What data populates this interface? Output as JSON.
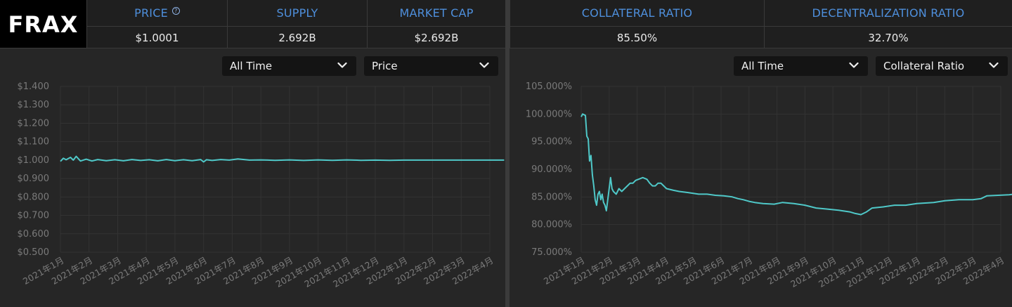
{
  "logo": "FRAX",
  "stats": [
    {
      "label": "PRICE",
      "value": "$1.0001",
      "has_info": true
    },
    {
      "label": "SUPPLY",
      "value": "2.692B"
    },
    {
      "label": "MARKET CAP",
      "value": "$2.692B"
    },
    {
      "label": "COLLATERAL RATIO",
      "value": "85.50%"
    },
    {
      "label": "DECENTRALIZATION RATIO",
      "value": "32.70%"
    }
  ],
  "info_icon_glyph": "?",
  "left_panel": {
    "range_dropdown": "All Time",
    "metric_dropdown": "Price"
  },
  "right_panel": {
    "range_dropdown": "All Time",
    "metric_dropdown": "Collateral Ratio"
  },
  "colors": {
    "line": "#4fc8c8",
    "accent": "#4e8fdc"
  },
  "chart_data": [
    {
      "type": "line",
      "title": "",
      "ylabel": "",
      "xlabel": "",
      "ylim": [
        0.5,
        1.4
      ],
      "yticks": [
        "$1.400",
        "$1.300",
        "$1.200",
        "$1.100",
        "$1.000",
        "$0.900",
        "$0.800",
        "$0.700",
        "$0.600",
        "$0.500"
      ],
      "ytick_values": [
        1.4,
        1.3,
        1.2,
        1.1,
        1.0,
        0.9,
        0.8,
        0.7,
        0.6,
        0.5
      ],
      "xticks": [
        "2021年1月",
        "2021年2月",
        "2021年3月",
        "2021年4月",
        "2021年5月",
        "2021年6月",
        "2021年7月",
        "2021年8月",
        "2021年9月",
        "2021年10月",
        "2021年11月",
        "2021年12月",
        "2022年1月",
        "2022年2月",
        "2022年3月",
        "2022年4月"
      ],
      "series": [
        {
          "values": [
            [
              0,
              0.993
            ],
            [
              0.1,
              1.01
            ],
            [
              0.2,
              1.002
            ],
            [
              0.35,
              1.015
            ],
            [
              0.45,
              1.0
            ],
            [
              0.55,
              1.02
            ],
            [
              0.7,
              0.995
            ],
            [
              0.9,
              1.005
            ],
            [
              1.1,
              0.995
            ],
            [
              1.3,
              1.003
            ],
            [
              1.6,
              0.997
            ],
            [
              1.9,
              1.002
            ],
            [
              2.2,
              0.996
            ],
            [
              2.5,
              1.003
            ],
            [
              2.8,
              0.998
            ],
            [
              3.1,
              1.002
            ],
            [
              3.4,
              0.996
            ],
            [
              3.7,
              1.003
            ],
            [
              4.0,
              0.997
            ],
            [
              4.3,
              1.002
            ],
            [
              4.6,
              0.997
            ],
            [
              4.9,
              1.003
            ],
            [
              5.0,
              0.99
            ],
            [
              5.1,
              1.002
            ],
            [
              5.3,
              0.998
            ],
            [
              5.6,
              1.003
            ],
            [
              5.9,
              1.0
            ],
            [
              6.2,
              1.006
            ],
            [
              6.6,
              1.0
            ],
            [
              7.0,
              1.001
            ],
            [
              7.5,
              0.999
            ],
            [
              8.0,
              1.001
            ],
            [
              8.5,
              0.998
            ],
            [
              9.0,
              1.001
            ],
            [
              9.5,
              0.999
            ],
            [
              10.0,
              1.001
            ],
            [
              10.5,
              0.999
            ],
            [
              11.0,
              1.0
            ],
            [
              11.5,
              0.999
            ],
            [
              12.0,
              1.0
            ],
            [
              12.5,
              1.0
            ],
            [
              13.0,
              1.0
            ],
            [
              13.5,
              1.0
            ],
            [
              14.0,
              1.0
            ],
            [
              14.5,
              1.0
            ],
            [
              15.0,
              1.0
            ],
            [
              15.5,
              1.0
            ]
          ]
        }
      ]
    },
    {
      "type": "line",
      "title": "",
      "ylabel": "",
      "xlabel": "",
      "ylim": [
        75,
        105
      ],
      "yticks": [
        "105.000%",
        "100.000%",
        "95.000%",
        "90.000%",
        "85.000%",
        "80.000%",
        "75.000%"
      ],
      "ytick_values": [
        105,
        100,
        95,
        90,
        85,
        80,
        75
      ],
      "xticks": [
        "2021年1月",
        "2021年2月",
        "2021年3月",
        "2021年4月",
        "2021年5月",
        "2021年6月",
        "2021年7月",
        "2021年8月",
        "2021年9月",
        "2021年10月",
        "2021年11月",
        "2021年12月",
        "2022年1月",
        "2022年2月",
        "2022年3月",
        "2022年4月"
      ],
      "series": [
        {
          "values": [
            [
              0,
              99.5
            ],
            [
              0.05,
              100
            ],
            [
              0.15,
              99.75
            ],
            [
              0.2,
              96
            ],
            [
              0.25,
              95.5
            ],
            [
              0.3,
              91.5
            ],
            [
              0.35,
              92.5
            ],
            [
              0.4,
              89
            ],
            [
              0.45,
              87
            ],
            [
              0.5,
              84.5
            ],
            [
              0.55,
              83.5
            ],
            [
              0.6,
              85.5
            ],
            [
              0.65,
              86
            ],
            [
              0.7,
              84.5
            ],
            [
              0.75,
              85.5
            ],
            [
              0.8,
              84
            ],
            [
              0.85,
              83.5
            ],
            [
              0.9,
              82.5
            ],
            [
              0.95,
              84.5
            ],
            [
              1.0,
              86.5
            ],
            [
              1.05,
              88.5
            ],
            [
              1.1,
              86.5
            ],
            [
              1.15,
              86
            ],
            [
              1.25,
              85.5
            ],
            [
              1.35,
              86.5
            ],
            [
              1.45,
              86
            ],
            [
              1.55,
              86.5
            ],
            [
              1.65,
              87
            ],
            [
              1.75,
              87.5
            ],
            [
              1.85,
              87.5
            ],
            [
              1.95,
              88
            ],
            [
              2.05,
              88.2
            ],
            [
              2.2,
              88.5
            ],
            [
              2.35,
              88.2
            ],
            [
              2.45,
              87.5
            ],
            [
              2.55,
              87
            ],
            [
              2.65,
              87
            ],
            [
              2.75,
              87.5
            ],
            [
              2.85,
              87.5
            ],
            [
              2.95,
              87
            ],
            [
              3.05,
              86.5
            ],
            [
              3.3,
              86.2
            ],
            [
              3.5,
              86
            ],
            [
              3.8,
              85.8
            ],
            [
              4.2,
              85.5
            ],
            [
              4.5,
              85.5
            ],
            [
              4.8,
              85.3
            ],
            [
              5.1,
              85.2
            ],
            [
              5.4,
              85
            ],
            [
              5.6,
              84.7
            ],
            [
              5.8,
              84.5
            ],
            [
              6.0,
              84.2
            ],
            [
              6.2,
              84
            ],
            [
              6.5,
              83.8
            ],
            [
              6.9,
              83.7
            ],
            [
              7.2,
              84
            ],
            [
              7.6,
              83.8
            ],
            [
              8.0,
              83.5
            ],
            [
              8.4,
              83
            ],
            [
              8.8,
              82.8
            ],
            [
              9.2,
              82.6
            ],
            [
              9.6,
              82.3
            ],
            [
              9.8,
              82
            ],
            [
              10.0,
              81.8
            ],
            [
              10.2,
              82.3
            ],
            [
              10.4,
              83
            ],
            [
              10.8,
              83.2
            ],
            [
              11.2,
              83.5
            ],
            [
              11.6,
              83.5
            ],
            [
              12.0,
              83.8
            ],
            [
              12.6,
              84
            ],
            [
              13.0,
              84.3
            ],
            [
              13.5,
              84.5
            ],
            [
              14.0,
              84.5
            ],
            [
              14.3,
              84.7
            ],
            [
              14.5,
              85.2
            ],
            [
              14.9,
              85.3
            ],
            [
              15.3,
              85.4
            ],
            [
              15.5,
              85.5
            ]
          ]
        }
      ]
    }
  ]
}
